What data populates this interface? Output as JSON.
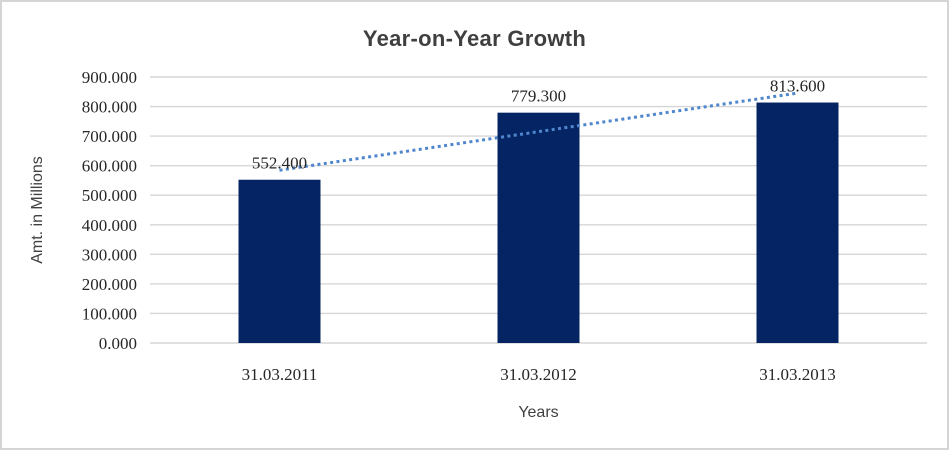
{
  "frame": {
    "border_color": "#d5d5d5",
    "background": "#ffffff"
  },
  "colors": {
    "bar": "#042463",
    "trendline": "#4f86cd",
    "gridline": "#d6d6d6",
    "tick_text": "#262626",
    "title_text": "#3f3f3f",
    "axis_title_text": "#404040"
  },
  "chart_data": {
    "type": "bar",
    "title": "Year-on-Year Growth",
    "xlabel": "Years",
    "ylabel": "Amt. in Millions",
    "categories": [
      "31.03.2011",
      "31.03.2012",
      "31.03.2013"
    ],
    "values": [
      552.4,
      779.3,
      813.6
    ],
    "data_labels": [
      "552.400",
      "779.300",
      "813.600"
    ],
    "ylim": [
      0,
      900
    ],
    "ytick_step": 100,
    "ytick_labels": [
      "900.000",
      "800.000",
      "700.000",
      "600.000",
      "500.000",
      "400.000",
      "300.000",
      "200.000",
      "100.000",
      "0.000"
    ],
    "grid": true,
    "legend": "none",
    "trendline": {
      "type": "linear",
      "style": "dotted"
    }
  }
}
